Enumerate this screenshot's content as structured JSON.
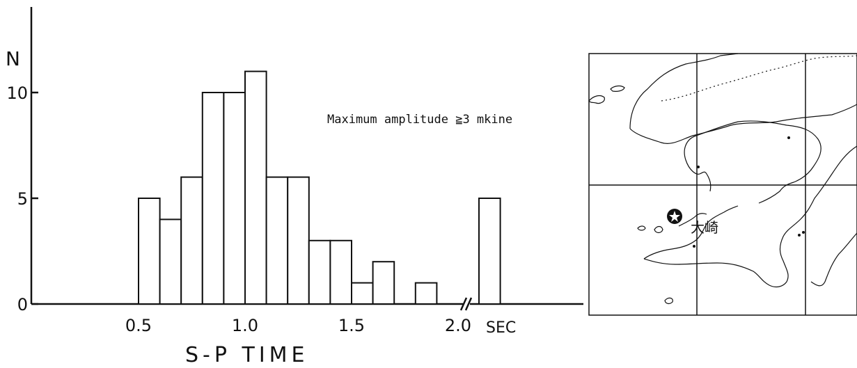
{
  "chart_data": {
    "type": "bar",
    "title": "",
    "xlabel": "S-P TIME",
    "ylabel": "N",
    "x_unit": "SEC",
    "annotation": "Maximum amplitude ≧3 mkine",
    "ylim": [
      0,
      14
    ],
    "x_ticks": [
      "0.5",
      "1.0",
      "1.5",
      "2.0"
    ],
    "y_ticks": [
      "0",
      "5",
      "10"
    ],
    "bin_width": 0.1,
    "bins": [
      {
        "x0": 0.5,
        "x1": 0.6,
        "value": 5
      },
      {
        "x0": 0.6,
        "x1": 0.7,
        "value": 4
      },
      {
        "x0": 0.7,
        "x1": 0.8,
        "value": 6
      },
      {
        "x0": 0.8,
        "x1": 0.9,
        "value": 10
      },
      {
        "x0": 0.9,
        "x1": 1.0,
        "value": 10
      },
      {
        "x0": 1.0,
        "x1": 1.1,
        "value": 11
      },
      {
        "x0": 1.1,
        "x1": 1.2,
        "value": 6
      },
      {
        "x0": 1.2,
        "x1": 1.3,
        "value": 6
      },
      {
        "x0": 1.3,
        "x1": 1.4,
        "value": 3
      },
      {
        "x0": 1.4,
        "x1": 1.5,
        "value": 3
      },
      {
        "x0": 1.5,
        "x1": 1.6,
        "value": 1
      },
      {
        "x0": 1.6,
        "x1": 1.7,
        "value": 2
      },
      {
        "x0": 1.8,
        "x1": 1.9,
        "value": 1
      }
    ],
    "overflow_bin": {
      "label": "> 2.0",
      "value": 5
    },
    "axis_break_after": 2.0,
    "grid": false
  },
  "map": {
    "station_label": "大崎",
    "station_icon": "star-in-circle-icon"
  }
}
